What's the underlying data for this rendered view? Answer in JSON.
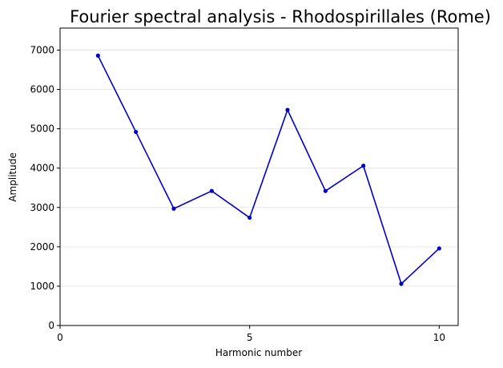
{
  "chart_data": {
    "type": "line",
    "title": "Fourier spectral analysis - Rhodospirillales (Rome)",
    "xlabel": "Harmonic number",
    "ylabel": "Amplitude",
    "x": [
      1,
      2,
      3,
      4,
      5,
      6,
      7,
      8,
      9,
      10
    ],
    "series": [
      {
        "values": [
          6860,
          4920,
          2970,
          3420,
          2740,
          5480,
          3420,
          4060,
          1060,
          1960
        ],
        "color": "#0000cc"
      }
    ],
    "xlim": [
      0,
      10.5
    ],
    "ylim": [
      0,
      7560
    ],
    "x_ticks": [
      0,
      5,
      10
    ],
    "y_ticks": [
      0,
      1000,
      2000,
      3000,
      4000,
      5000,
      6000,
      7000
    ],
    "grid": "y-only",
    "legend": "none",
    "marker": "dot"
  }
}
